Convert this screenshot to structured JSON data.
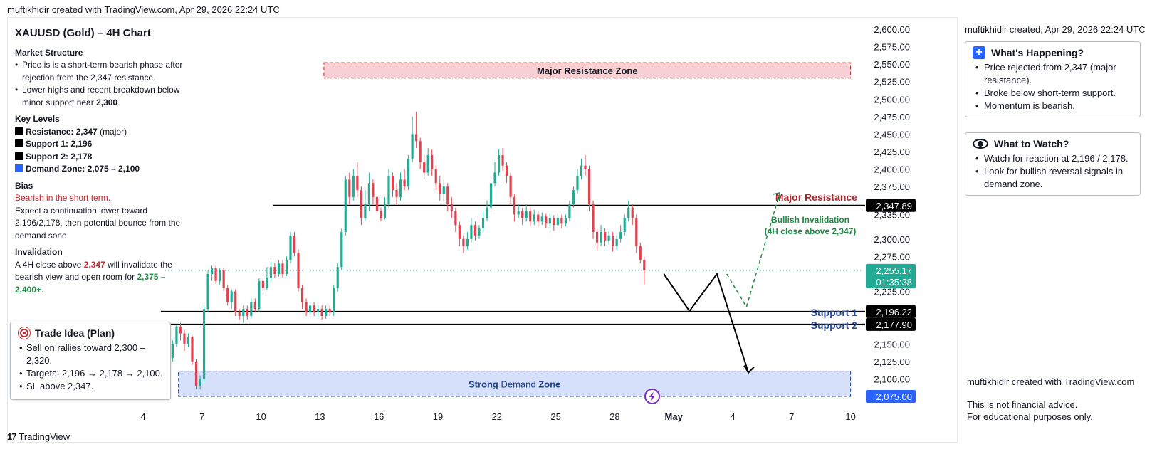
{
  "top_attribution": "muftikhidir created with TradingView.com, Apr 29, 2026 22:24 UTC",
  "left_notes": {
    "title": "XAUUSD (Gold) – 4H Chart",
    "market_structure": {
      "heading": "Market Structure",
      "bullets": [
        {
          "text": "Price is is a short-term bearish phase after rejection from the 2,347 resistance."
        },
        {
          "pre": "Lower highs and recent breakdown below minor support near ",
          "strong": "2,300",
          "post": "."
        }
      ]
    },
    "key_levels": {
      "heading": "Key Levels",
      "items": [
        {
          "label": "Resistance: 2,347",
          "suffix": " (major)",
          "color": "#000000"
        },
        {
          "label": "Support 1: 2,196",
          "suffix": "",
          "color": "#000000"
        },
        {
          "label": "Support 2: 2,178",
          "suffix": "",
          "color": "#000000"
        },
        {
          "label": "Demand Zone: 2,075 – 2,100",
          "suffix": "",
          "color": "#2962ff"
        }
      ]
    },
    "bias": {
      "heading": "Bias",
      "red_line": "Bearish in the short term.",
      "text": "Expect a continuation lower toward 2,196/2,178, then potential bounce from the demand sone."
    },
    "invalidation": {
      "heading": "Invalidation",
      "pre": "A 4H close above ",
      "red": "2,347",
      "mid": " will invalidate the bearish view and open room for ",
      "green": "2,375 – 2,400+",
      "post": "."
    }
  },
  "trade_idea": {
    "title": "Trade Idea (Plan)",
    "icon": "target-icon",
    "bullets": [
      "Sell on rallies toward 2,300 – 2,320.",
      "Targets: 2,196 → 2,178 → 2,100.",
      "SL above 2,347."
    ]
  },
  "right_panel": {
    "created": "muftikhidir created, Apr 29, 2026 22:24 UTC",
    "whats_happening": {
      "title": "What's Happening?",
      "icon": "plus-icon",
      "bullets": [
        "Price rejected from 2,347 (major resistance).",
        "Broke below short-term support.",
        "Momentum is bearish."
      ]
    },
    "what_to_watch": {
      "title": "What to Watch?",
      "icon": "eye-icon",
      "bullets": [
        "Watch for reaction at 2,196 / 2,178.",
        "Look for bullish reversal signals in demand zone."
      ]
    },
    "footer_credit": "muftikhidir created with TradingView.com",
    "disclaimer_1": "This is not financial advice.",
    "disclaimer_2": "For educational purposes only."
  },
  "chart_data": {
    "type": "candlestick",
    "ylim": [
      2064,
      2606
    ],
    "price_ticks": [
      "2,600.00",
      "2,575.00",
      "2,550.00",
      "2,525.00",
      "2,500.00",
      "2,475.00",
      "2,450.00",
      "2,425.00",
      "2,400.00",
      "2,375.00",
      "2,350.00",
      "2,335.00",
      "2,300.00",
      "2,275.00",
      "2,250.00",
      "2,225.00",
      "2,200.00",
      "2,175.00",
      "2,150.00",
      "2,125.00",
      "2,100.00",
      "2,075.00"
    ],
    "tick_values": [
      2600,
      2575,
      2550,
      2525,
      2500,
      2475,
      2450,
      2425,
      2400,
      2375,
      2350,
      2335,
      2300,
      2275,
      2250,
      2225,
      2200,
      2175,
      2150,
      2125,
      2100,
      2075
    ],
    "date_labels": [
      {
        "text": "4",
        "day": 4,
        "bold": false
      },
      {
        "text": "7",
        "day": 7,
        "bold": false
      },
      {
        "text": "10",
        "day": 10,
        "bold": false
      },
      {
        "text": "13",
        "day": 13,
        "bold": false
      },
      {
        "text": "16",
        "day": 16,
        "bold": false
      },
      {
        "text": "19",
        "day": 19,
        "bold": false
      },
      {
        "text": "22",
        "day": 22,
        "bold": false
      },
      {
        "text": "25",
        "day": 25,
        "bold": false
      },
      {
        "text": "28",
        "day": 28,
        "bold": false
      },
      {
        "text": "May",
        "day": 31,
        "bold": true
      },
      {
        "text": "4",
        "day": 34,
        "bold": false
      },
      {
        "text": "7",
        "day": 37,
        "bold": false
      },
      {
        "text": "10",
        "day": 40,
        "bold": false
      }
    ],
    "price_badges": [
      {
        "text": "2,347.89",
        "value": 2347.89,
        "color": "#000000"
      },
      {
        "text": "2,196.22",
        "value": 2196.22,
        "color": "#000000"
      },
      {
        "text": "2,177.90",
        "value": 2177.9,
        "color": "#000000"
      },
      {
        "text": "2,075.00",
        "value": 2075,
        "color": "#2962ff"
      }
    ],
    "current_price": {
      "text": "2,255.17",
      "countdown": "01:35:38",
      "value": 2255.17,
      "color": "#22ab94"
    },
    "levels": [
      {
        "label": "Major Resistance",
        "value": 2347.89,
        "from_day": 10.6,
        "label_color": "#b2282f"
      },
      {
        "label": "Support 1",
        "value": 2196.22,
        "from_day": 4.9,
        "label_color": "#2a4e9b"
      },
      {
        "label": "Support 2",
        "value": 2177.9,
        "from_day": 4.9,
        "label_color": "#2a4e9b"
      }
    ],
    "zones": [
      {
        "label": "Major Resistance Zone",
        "from_value": 2530,
        "to_value": 2552,
        "from_day": 13.2,
        "to_day": 40.0,
        "fill": "#f8d0d3",
        "stroke": "#c0282f",
        "text_color": "#131722"
      },
      {
        "label_pre": "Strong ",
        "label_main": "Demand",
        "label_post": " Zone",
        "from_value": 2075,
        "to_value": 2111,
        "from_day": 5.8,
        "to_day": 40.0,
        "fill": "#d6e0fb",
        "stroke": "#1e3f8a",
        "text_color": "#1e3f8a"
      }
    ],
    "annotation": {
      "line1": "Bullish Invalidation",
      "line2": "(4H close above 2,347)",
      "color": "#1e8c45"
    },
    "bearish_path": [
      [
        30.5,
        2250
      ],
      [
        31.8,
        2197
      ],
      [
        33.2,
        2250
      ],
      [
        34.8,
        2109
      ]
    ],
    "bullish_path": [
      [
        33.7,
        2250
      ],
      [
        34.7,
        2203
      ],
      [
        36.4,
        2366
      ]
    ],
    "candles": [
      [
        1.7,
        2140,
        2130,
        2145,
        2128
      ],
      [
        1.9,
        2132,
        2120,
        2136,
        2116
      ],
      [
        2.1,
        2122,
        2136,
        2140,
        2118
      ],
      [
        2.3,
        2136,
        2126,
        2140,
        2122
      ],
      [
        2.5,
        2126,
        2132,
        2136,
        2123
      ],
      [
        2.7,
        2132,
        2125,
        2135,
        2122
      ],
      [
        2.9,
        2125,
        2134,
        2137,
        2122
      ],
      [
        3.1,
        2134,
        2129,
        2137,
        2126
      ],
      [
        3.3,
        2129,
        2131,
        2134,
        2126
      ],
      [
        3.5,
        2131,
        2126,
        2134,
        2123
      ],
      [
        3.7,
        2126,
        2132,
        2135,
        2124
      ],
      [
        3.9,
        2132,
        2128,
        2135,
        2126
      ],
      [
        4.1,
        2128,
        2133,
        2136,
        2125
      ],
      [
        4.3,
        2133,
        2129,
        2136,
        2126
      ],
      [
        4.5,
        2129,
        2134,
        2137,
        2127
      ],
      [
        4.7,
        2134,
        2130,
        2137,
        2127
      ],
      [
        4.9,
        2130,
        2135,
        2138,
        2127
      ],
      [
        5.1,
        2135,
        2080,
        2136,
        2077
      ],
      [
        5.3,
        2090,
        2130,
        2133,
        2085
      ],
      [
        5.5,
        2130,
        2150,
        2155,
        2125
      ],
      [
        5.7,
        2150,
        2175,
        2178,
        2145
      ],
      [
        5.9,
        2175,
        2165,
        2180,
        2155
      ],
      [
        6.1,
        2165,
        2150,
        2170,
        2140
      ],
      [
        6.3,
        2150,
        2160,
        2165,
        2145
      ],
      [
        6.5,
        2160,
        2125,
        2162,
        2120
      ],
      [
        6.7,
        2125,
        2090,
        2128,
        2085
      ],
      [
        6.9,
        2090,
        2100,
        2105,
        2085
      ],
      [
        7.1,
        2100,
        2200,
        2205,
        2095
      ],
      [
        7.3,
        2200,
        2250,
        2255,
        2195
      ],
      [
        7.5,
        2250,
        2258,
        2262,
        2240
      ],
      [
        7.7,
        2258,
        2240,
        2262,
        2236
      ],
      [
        7.9,
        2240,
        2255,
        2258,
        2235
      ],
      [
        8.1,
        2255,
        2230,
        2258,
        2225
      ],
      [
        8.3,
        2230,
        2210,
        2235,
        2205
      ],
      [
        8.5,
        2210,
        2225,
        2228,
        2200
      ],
      [
        8.7,
        2225,
        2195,
        2228,
        2190
      ],
      [
        8.9,
        2195,
        2190,
        2200,
        2185
      ],
      [
        9.1,
        2190,
        2200,
        2205,
        2180
      ],
      [
        9.3,
        2200,
        2190,
        2205,
        2185
      ],
      [
        9.5,
        2190,
        2210,
        2215,
        2186
      ],
      [
        9.7,
        2210,
        2200,
        2215,
        2195
      ],
      [
        9.9,
        2200,
        2240,
        2244,
        2196
      ],
      [
        10.1,
        2240,
        2230,
        2245,
        2225
      ],
      [
        10.3,
        2230,
        2245,
        2260,
        2227
      ],
      [
        10.5,
        2245,
        2260,
        2268,
        2240
      ],
      [
        10.7,
        2260,
        2250,
        2265,
        2245
      ],
      [
        10.9,
        2250,
        2265,
        2270,
        2246
      ],
      [
        11.1,
        2265,
        2250,
        2270,
        2245
      ],
      [
        11.3,
        2250,
        2270,
        2275,
        2247
      ],
      [
        11.5,
        2270,
        2305,
        2310,
        2265
      ],
      [
        11.7,
        2305,
        2280,
        2310,
        2275
      ],
      [
        11.9,
        2280,
        2230,
        2285,
        2225
      ],
      [
        12.1,
        2230,
        2210,
        2235,
        2200
      ],
      [
        12.3,
        2210,
        2195,
        2215,
        2190
      ],
      [
        12.5,
        2195,
        2205,
        2210,
        2188
      ],
      [
        12.7,
        2205,
        2195,
        2210,
        2190
      ],
      [
        12.9,
        2195,
        2200,
        2205,
        2188
      ],
      [
        13.1,
        2200,
        2190,
        2205,
        2185
      ],
      [
        13.3,
        2190,
        2200,
        2205,
        2186
      ],
      [
        13.5,
        2200,
        2195,
        2205,
        2190
      ],
      [
        13.7,
        2195,
        2230,
        2235,
        2190
      ],
      [
        13.9,
        2230,
        2260,
        2265,
        2225
      ],
      [
        14.1,
        2260,
        2310,
        2315,
        2255
      ],
      [
        14.3,
        2310,
        2385,
        2390,
        2305
      ],
      [
        14.5,
        2385,
        2360,
        2395,
        2350
      ],
      [
        14.7,
        2360,
        2390,
        2400,
        2355
      ],
      [
        14.9,
        2390,
        2370,
        2410,
        2360
      ],
      [
        15.1,
        2370,
        2330,
        2375,
        2320
      ],
      [
        15.3,
        2330,
        2350,
        2370,
        2325
      ],
      [
        15.5,
        2350,
        2380,
        2395,
        2340
      ],
      [
        15.7,
        2380,
        2360,
        2385,
        2350
      ],
      [
        15.9,
        2360,
        2340,
        2365,
        2335
      ],
      [
        16.1,
        2340,
        2330,
        2345,
        2325
      ],
      [
        16.3,
        2330,
        2350,
        2360,
        2328
      ],
      [
        16.5,
        2350,
        2390,
        2400,
        2345
      ],
      [
        16.7,
        2390,
        2370,
        2395,
        2360
      ],
      [
        16.9,
        2370,
        2360,
        2380,
        2350
      ],
      [
        17.1,
        2360,
        2385,
        2395,
        2355
      ],
      [
        17.3,
        2385,
        2375,
        2400,
        2370
      ],
      [
        17.5,
        2375,
        2415,
        2420,
        2370
      ],
      [
        17.7,
        2415,
        2450,
        2475,
        2410
      ],
      [
        17.9,
        2450,
        2440,
        2482,
        2430
      ],
      [
        18.1,
        2440,
        2410,
        2445,
        2400
      ],
      [
        18.3,
        2410,
        2395,
        2420,
        2385
      ],
      [
        18.5,
        2395,
        2420,
        2430,
        2390
      ],
      [
        18.7,
        2420,
        2400,
        2428,
        2390
      ],
      [
        18.9,
        2400,
        2380,
        2405,
        2370
      ],
      [
        19.1,
        2380,
        2365,
        2390,
        2355
      ],
      [
        19.3,
        2365,
        2375,
        2385,
        2355
      ],
      [
        19.5,
        2375,
        2350,
        2380,
        2340
      ],
      [
        19.7,
        2350,
        2340,
        2360,
        2330
      ],
      [
        19.9,
        2340,
        2320,
        2345,
        2310
      ],
      [
        20.1,
        2320,
        2300,
        2325,
        2290
      ],
      [
        20.3,
        2300,
        2290,
        2305,
        2280
      ],
      [
        20.5,
        2290,
        2300,
        2310,
        2285
      ],
      [
        20.7,
        2300,
        2320,
        2330,
        2295
      ],
      [
        20.9,
        2320,
        2305,
        2325,
        2298
      ],
      [
        21.1,
        2305,
        2315,
        2320,
        2300
      ],
      [
        21.3,
        2315,
        2330,
        2340,
        2310
      ],
      [
        21.5,
        2330,
        2345,
        2355,
        2325
      ],
      [
        21.7,
        2345,
        2380,
        2385,
        2340
      ],
      [
        21.9,
        2380,
        2395,
        2410,
        2375
      ],
      [
        22.1,
        2395,
        2420,
        2428,
        2390
      ],
      [
        22.3,
        2420,
        2405,
        2430,
        2398
      ],
      [
        22.5,
        2405,
        2390,
        2410,
        2380
      ],
      [
        22.7,
        2390,
        2360,
        2395,
        2350
      ],
      [
        22.9,
        2360,
        2335,
        2365,
        2325
      ],
      [
        23.1,
        2335,
        2340,
        2350,
        2330
      ],
      [
        23.3,
        2340,
        2330,
        2345,
        2320
      ],
      [
        23.5,
        2330,
        2340,
        2350,
        2325
      ],
      [
        23.7,
        2340,
        2325,
        2345,
        2318
      ],
      [
        23.9,
        2325,
        2335,
        2342,
        2320
      ],
      [
        24.1,
        2335,
        2325,
        2340,
        2318
      ],
      [
        24.3,
        2325,
        2332,
        2338,
        2320
      ],
      [
        24.5,
        2332,
        2322,
        2336,
        2316
      ],
      [
        24.7,
        2322,
        2330,
        2336,
        2315
      ],
      [
        24.9,
        2330,
        2320,
        2334,
        2312
      ],
      [
        25.1,
        2320,
        2330,
        2336,
        2316
      ],
      [
        25.3,
        2330,
        2322,
        2335,
        2315
      ],
      [
        25.5,
        2322,
        2330,
        2335,
        2318
      ],
      [
        25.7,
        2330,
        2350,
        2355,
        2325
      ],
      [
        25.9,
        2350,
        2370,
        2375,
        2345
      ],
      [
        26.1,
        2370,
        2390,
        2400,
        2365
      ],
      [
        26.3,
        2390,
        2405,
        2415,
        2385
      ],
      [
        26.5,
        2405,
        2400,
        2420,
        2390
      ],
      [
        26.7,
        2400,
        2350,
        2405,
        2340
      ],
      [
        26.9,
        2350,
        2310,
        2355,
        2300
      ],
      [
        27.1,
        2310,
        2295,
        2315,
        2285
      ],
      [
        27.3,
        2295,
        2310,
        2320,
        2290
      ],
      [
        27.5,
        2310,
        2298,
        2315,
        2290
      ],
      [
        27.7,
        2298,
        2305,
        2312,
        2292
      ],
      [
        27.9,
        2305,
        2290,
        2310,
        2282
      ],
      [
        28.1,
        2290,
        2300,
        2305,
        2285
      ],
      [
        28.3,
        2300,
        2310,
        2320,
        2295
      ],
      [
        28.5,
        2310,
        2330,
        2335,
        2305
      ],
      [
        28.7,
        2330,
        2345,
        2355,
        2325
      ],
      [
        28.9,
        2345,
        2330,
        2350,
        2320
      ],
      [
        29.1,
        2330,
        2290,
        2335,
        2280
      ],
      [
        29.3,
        2290,
        2270,
        2295,
        2265
      ],
      [
        29.5,
        2270,
        2255,
        2275,
        2235
      ]
    ]
  }
}
